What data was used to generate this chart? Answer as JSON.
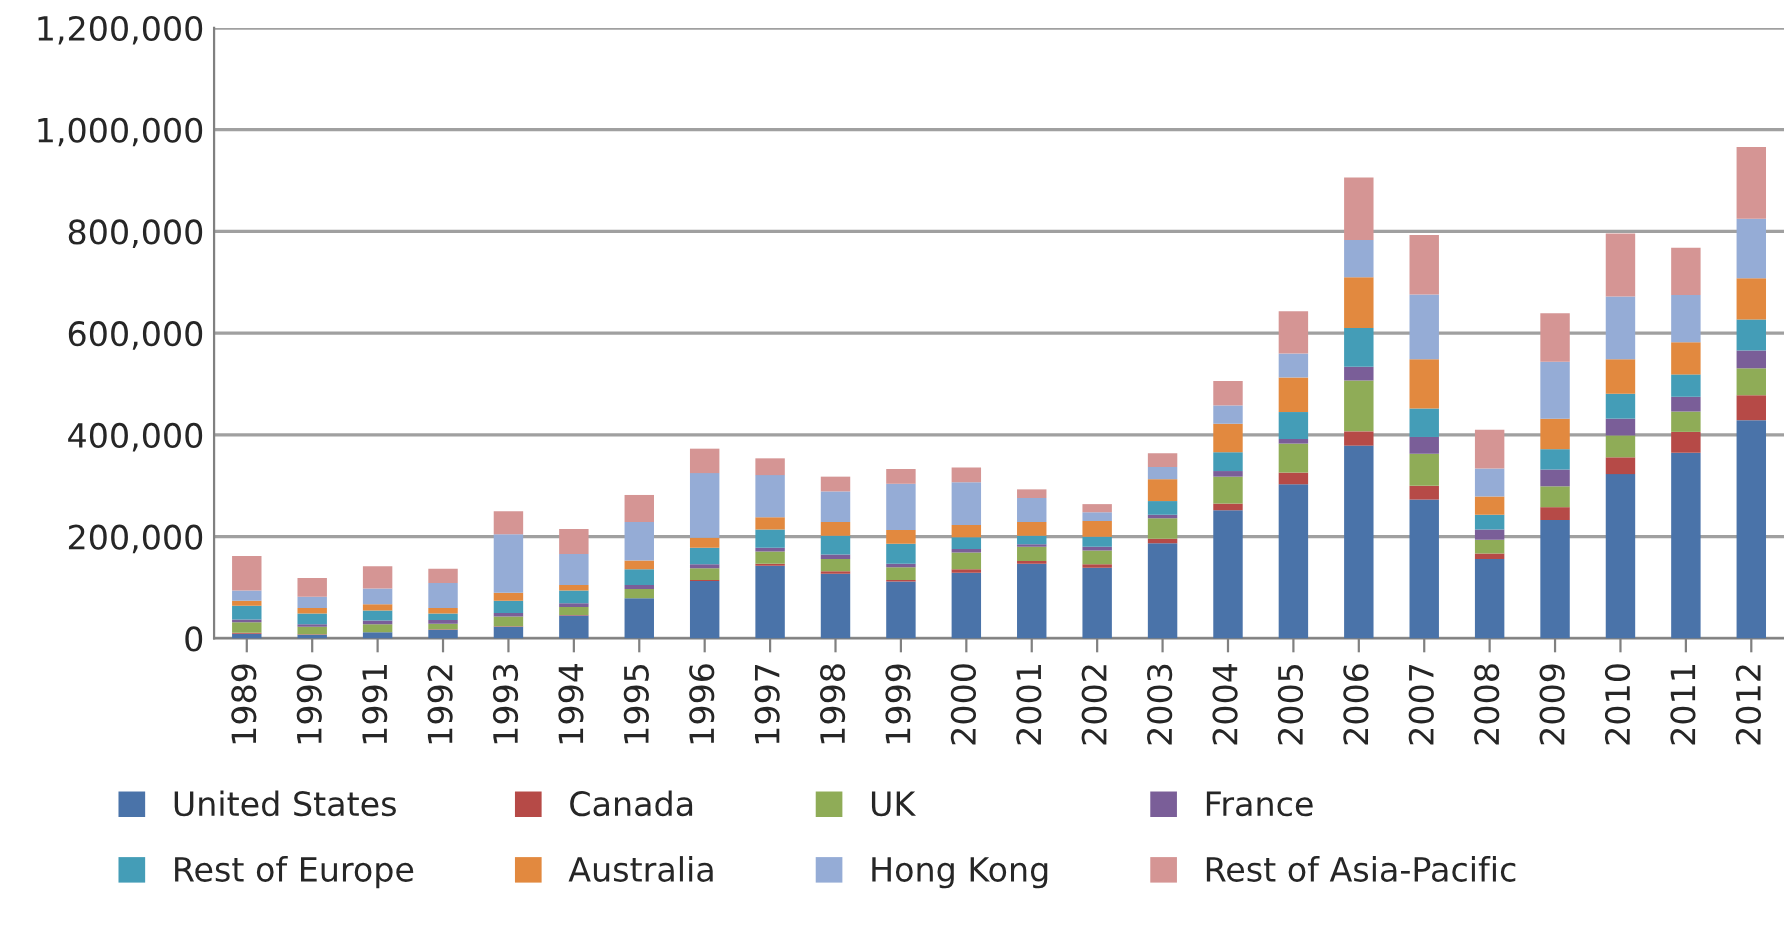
{
  "chart_data": {
    "type": "bar",
    "stacked": true,
    "categories": [
      "1989",
      "1990",
      "1991",
      "1992",
      "1993",
      "1994",
      "1995",
      "1996",
      "1997",
      "1998",
      "1999",
      "2000",
      "2001",
      "2002",
      "2003",
      "2004",
      "2005",
      "2006",
      "2007",
      "2008",
      "2009",
      "2010",
      "2011",
      "2012"
    ],
    "series": [
      {
        "name": "United States",
        "color": "#4a73a9",
        "values": [
          9000,
          7000,
          12000,
          17000,
          23000,
          45000,
          79000,
          113000,
          143000,
          127000,
          112000,
          129000,
          147000,
          139000,
          187000,
          252000,
          303000,
          379000,
          273000,
          156000,
          233000,
          323000,
          365000,
          429000
        ]
      },
      {
        "name": "Canada",
        "color": "#b64a47",
        "values": [
          2000,
          1000,
          null,
          1000,
          1000,
          1000,
          null,
          2000,
          4000,
          5000,
          3000,
          7000,
          5000,
          7000,
          9000,
          13000,
          23000,
          28000,
          27000,
          11000,
          25000,
          33000,
          41000,
          49000
        ]
      },
      {
        "name": "UK",
        "color": "#8fac57",
        "values": [
          21000,
          15000,
          16000,
          11000,
          19000,
          16000,
          18000,
          23000,
          24000,
          24000,
          25000,
          33000,
          28000,
          27000,
          40000,
          53000,
          57000,
          100000,
          63000,
          27000,
          41000,
          43000,
          40000,
          53000
        ]
      },
      {
        "name": "France",
        "color": "#7a5e98",
        "values": [
          5000,
          5000,
          7000,
          7000,
          7000,
          7000,
          8000,
          8000,
          7000,
          9000,
          7000,
          7000,
          5000,
          7000,
          7000,
          11000,
          9000,
          27000,
          33000,
          20000,
          33000,
          33000,
          29000,
          35000
        ]
      },
      {
        "name": "Rest of Europe",
        "color": "#449db7",
        "values": [
          27000,
          21000,
          20000,
          13000,
          24000,
          25000,
          31000,
          32000,
          36000,
          37000,
          39000,
          23000,
          17000,
          20000,
          27000,
          37000,
          53000,
          76000,
          56000,
          29000,
          40000,
          49000,
          44000,
          61000
        ]
      },
      {
        "name": "Australia",
        "color": "#e2893f",
        "values": [
          10000,
          11000,
          12000,
          11000,
          16000,
          11000,
          17000,
          20000,
          24000,
          27000,
          27000,
          24000,
          27000,
          31000,
          43000,
          56000,
          68000,
          100000,
          97000,
          36000,
          60000,
          68000,
          63000,
          81000
        ]
      },
      {
        "name": "Hong Kong",
        "color": "#95acd6",
        "values": [
          20000,
          22000,
          31000,
          49000,
          115000,
          61000,
          76000,
          127000,
          83000,
          60000,
          91000,
          84000,
          47000,
          17000,
          24000,
          36000,
          47000,
          73000,
          127000,
          55000,
          112000,
          123000,
          93000,
          117000
        ]
      },
      {
        "name": "Rest of Asia-Pacific",
        "color": "#d59594",
        "values": [
          68000,
          37000,
          44000,
          28000,
          45000,
          49000,
          53000,
          48000,
          33000,
          29000,
          29000,
          29000,
          17000,
          16000,
          27000,
          48000,
          83000,
          123000,
          117000,
          76000,
          95000,
          124000,
          93000,
          141000
        ]
      }
    ],
    "ylim": [
      0,
      1200000
    ],
    "yticks": [
      {
        "value": 0,
        "label": "0"
      },
      {
        "value": 200000,
        "label": "200,000"
      },
      {
        "value": 400000,
        "label": "400,000"
      },
      {
        "value": 600000,
        "label": "600,000"
      },
      {
        "value": 800000,
        "label": "800,000"
      },
      {
        "value": 1000000,
        "label": "1,000,000"
      },
      {
        "value": 1200000,
        "label": "1,200,000"
      }
    ],
    "grid": "y",
    "legend": "bottom"
  }
}
